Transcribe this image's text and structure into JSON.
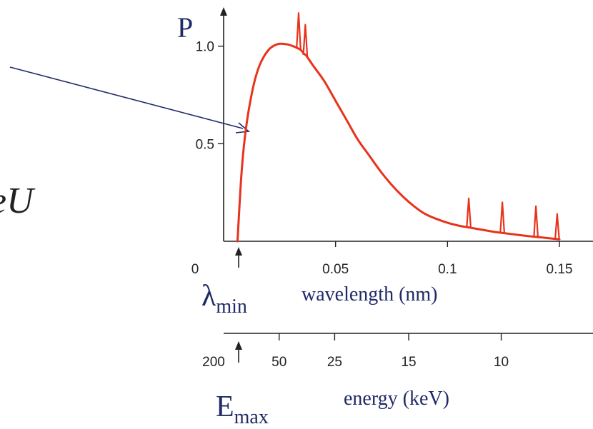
{
  "chart_data": {
    "type": "line",
    "ylabel": "P",
    "xlabel": "wavelength (nm)",
    "xlim": [
      0,
      0.165
    ],
    "ylim": [
      0,
      1.2
    ],
    "x_ticks": [
      {
        "value": 0,
        "label": "0"
      },
      {
        "value": 0.05,
        "label": "0.05"
      },
      {
        "value": 0.1,
        "label": "0.1"
      },
      {
        "value": 0.15,
        "label": "0.15"
      }
    ],
    "y_ticks": [
      {
        "value": 0.5,
        "label": "0.5"
      },
      {
        "value": 1.0,
        "label": "1.0"
      }
    ],
    "series": [
      {
        "color": "#e8331c",
        "x": [
          0.0062,
          0.008,
          0.01,
          0.013,
          0.016,
          0.02,
          0.024,
          0.028,
          0.031,
          0.033,
          0.0345,
          0.036,
          0.037,
          0.04,
          0.045,
          0.05,
          0.055,
          0.06,
          0.065,
          0.07,
          0.075,
          0.08,
          0.085,
          0.09,
          0.095,
          0.1,
          0.105,
          0.11,
          0.115,
          0.12,
          0.125,
          0.13,
          0.135,
          0.14,
          0.145,
          0.15
        ],
        "y": [
          0.0,
          0.35,
          0.58,
          0.78,
          0.9,
          0.98,
          1.01,
          1.01,
          1.0,
          0.99,
          0.98,
          0.96,
          0.95,
          0.9,
          0.82,
          0.72,
          0.62,
          0.52,
          0.44,
          0.36,
          0.29,
          0.23,
          0.18,
          0.14,
          0.115,
          0.095,
          0.08,
          0.07,
          0.06,
          0.05,
          0.042,
          0.035,
          0.028,
          0.022,
          0.016,
          0.01
        ]
      }
    ],
    "peaks": [
      {
        "x": 0.0335,
        "top": 1.17
      },
      {
        "x": 0.0365,
        "top": 1.11
      },
      {
        "x": 0.1095,
        "top": 0.22
      },
      {
        "x": 0.1245,
        "top": 0.2
      },
      {
        "x": 0.1395,
        "top": 0.18
      },
      {
        "x": 0.149,
        "top": 0.14
      }
    ],
    "energy_axis": {
      "label": "energy (keV)",
      "ticks": [
        {
          "value": 200,
          "label": "200"
        },
        {
          "value": 50,
          "label": "50"
        },
        {
          "value": 25,
          "label": "25"
        },
        {
          "value": 15,
          "label": "15"
        },
        {
          "value": 10,
          "label": "10"
        }
      ]
    },
    "annotations": {
      "lambda_min": {
        "symbol": "λ",
        "subscript": "min",
        "x": 0.0062
      },
      "e_max": {
        "symbol": "E",
        "subscript": "max"
      },
      "formula_fragment": "eU"
    }
  },
  "colors": {
    "curve": "#e8331c",
    "annotation": "#1f2a66",
    "axis": "#222222"
  }
}
